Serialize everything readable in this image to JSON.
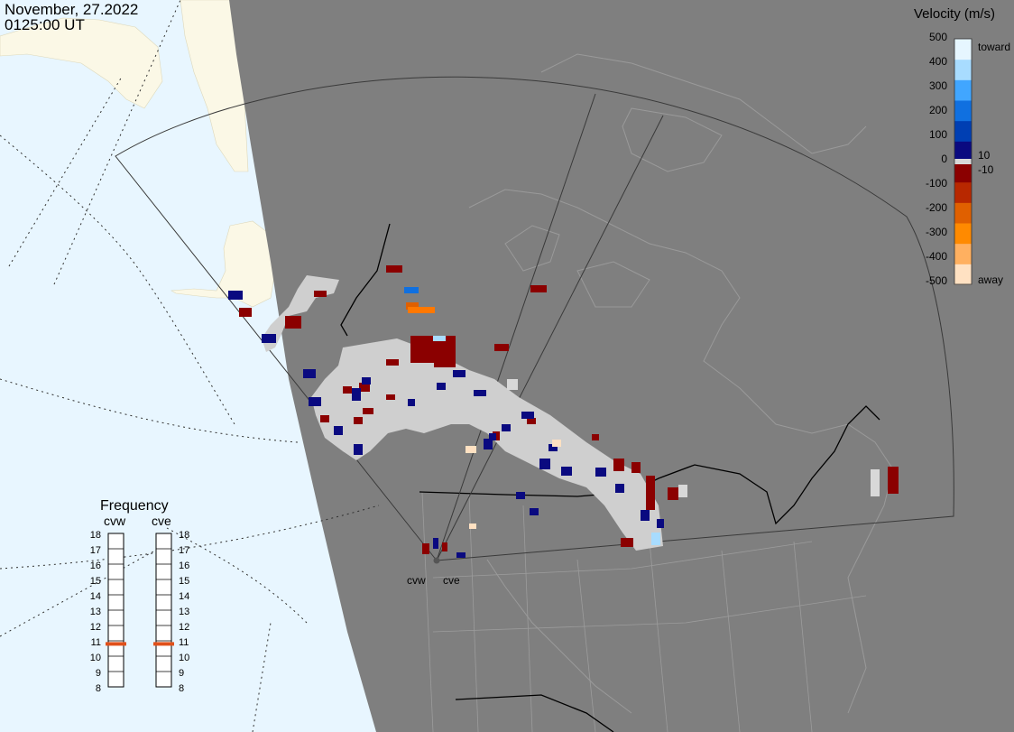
{
  "header": {
    "date": "November, 27.2022",
    "time": "0125:00 UT"
  },
  "colorbar": {
    "title": "Velocity (m/s)",
    "ticks": [
      "500",
      "400",
      "300",
      "200",
      "100",
      "0",
      "-100",
      "-200",
      "-300",
      "-400",
      "-500"
    ],
    "toward_label": "toward",
    "away_label": "away",
    "pos_threshold": "10",
    "neg_threshold": "-10",
    "colors": [
      "#ffe1c2",
      "#ffb060",
      "#ff8a00",
      "#e06000",
      "#b82800",
      "#8b0000",
      "#0a0a80",
      "#003fb3",
      "#1070e0",
      "#41a6ff",
      "#a8dcff",
      "#e6f6ff"
    ]
  },
  "frequency": {
    "title": "Frequency",
    "radars": [
      "cvw",
      "cve"
    ],
    "scale": [
      "18",
      "17",
      "16",
      "15",
      "14",
      "13",
      "12",
      "11",
      "10",
      "9",
      "8"
    ],
    "cvw_mhz": 10.8,
    "cve_mhz": 10.8,
    "marker_color": "#e0501a"
  },
  "sites": [
    "cvw",
    "cve"
  ],
  "map": {
    "ocean_color": "#e8f6ff",
    "land_color": "#fbf8e6",
    "night_color": "#7f7f7f",
    "border_color": "#000000",
    "gridline_color": "#303030",
    "ground_scatter_color": "#cfcfcf"
  }
}
